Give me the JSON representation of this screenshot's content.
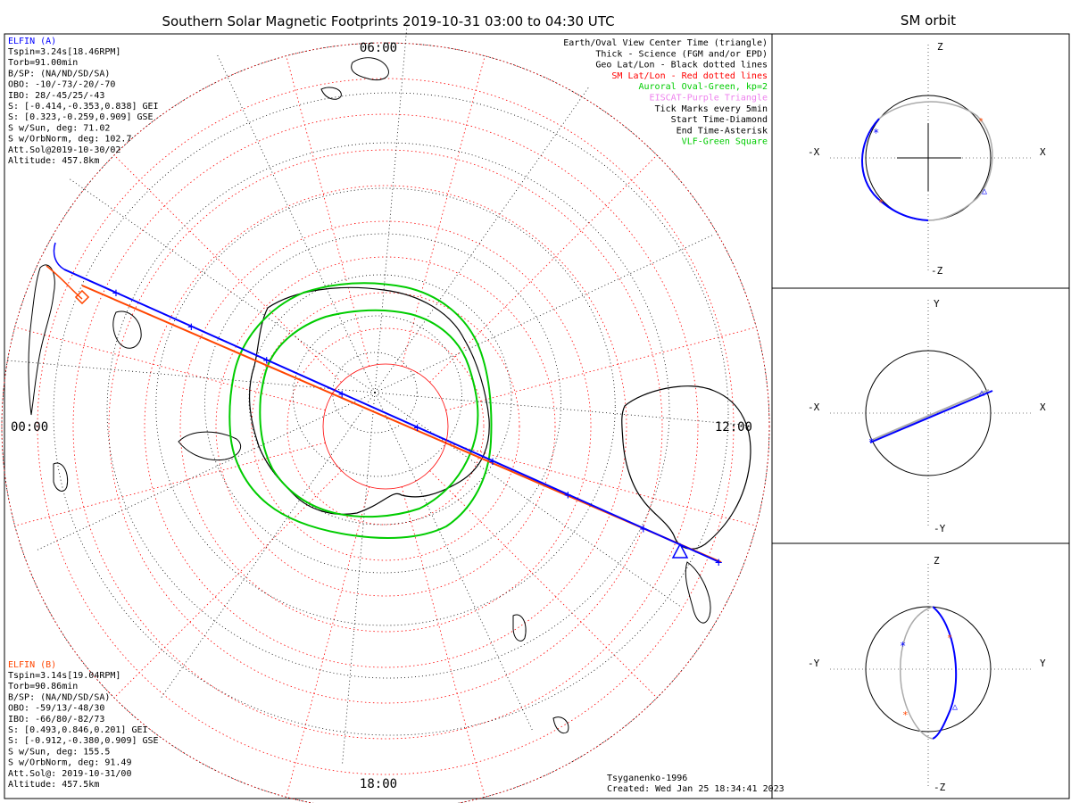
{
  "title": "Southern Solar Magnetic Footprints 2019-10-31 03:00 to 04:30 UTC",
  "sm_orbit_title": "SM orbit",
  "mlt_labels": {
    "top": "06:00",
    "left": "00:00",
    "right": "12:00",
    "bottom": "18:00"
  },
  "elfin_a": {
    "name": "ELFIN (A)",
    "color": "#0000ff",
    "lines": [
      "Tspin=3.24s[18.46RPM]",
      "Torb=91.00min",
      "B/SP: (NA/ND/SD/SA)",
      "OBO: -10/-73/-20/-70",
      "IBO: 28/-45/25/-43",
      "S: [-0.414,-0.353,0.838] GEI",
      "S: [0.323,-0.259,0.909] GSE",
      "S w/Sun, deg: 71.02",
      "S w/OrbNorm, deg: 102.7",
      "Att.Sol@2019-10-30/02",
      "Altitude: 457.8km"
    ]
  },
  "elfin_b": {
    "name": "ELFIN (B)",
    "color": "#ff4500",
    "lines": [
      "Tspin=3.14s[19.04RPM]",
      "Torb=90.86min",
      "B/SP: (NA/ND/SD/SA)",
      "OBO: -59/13/-48/30",
      "IBO: -66/80/-82/73",
      "S: [0.493,0.846,0.201] GEI",
      "S: [-0.912,-0.380,0.909] GSE",
      "S w/Sun, deg: 155.5",
      "S w/OrbNorm, deg: 91.49",
      "Att.Sol@: 2019-10-31/00",
      "Altitude: 457.5km"
    ]
  },
  "legend": [
    {
      "text": "Earth/Oval View Center Time (triangle)",
      "color": "#000000"
    },
    {
      "text": "Thick - Science (FGM and/or EPD)",
      "color": "#000000"
    },
    {
      "text": "Geo Lat/Lon - Black dotted lines",
      "color": "#000000"
    },
    {
      "text": "SM Lat/Lon - Red dotted lines",
      "color": "#ff0000"
    },
    {
      "text": "Auroral Oval-Green, kp=2",
      "color": "#00cc00"
    },
    {
      "text": "EISCAT-Purple Triangle",
      "color": "#ee82ee"
    },
    {
      "text": "Tick Marks every 5min",
      "color": "#000000"
    },
    {
      "text": "Start Time-Diamond",
      "color": "#000000"
    },
    {
      "text": "End Time-Asterisk",
      "color": "#000000"
    },
    {
      "text": "VLF-Green Square",
      "color": "#00cc00"
    }
  ],
  "credits": {
    "model": "Tsyganenko-1996",
    "created": "Created: Wed Jan 25 18:34:41 2023"
  },
  "panels": [
    {
      "top_label": "Z",
      "bottom_label": "-Z",
      "left_label": "-X",
      "right_label": "X"
    },
    {
      "top_label": "Y",
      "bottom_label": "-Y",
      "left_label": "-X",
      "right_label": "X"
    },
    {
      "top_label": "Z",
      "bottom_label": "-Z",
      "left_label": "-Y",
      "right_label": "Y"
    }
  ],
  "colors": {
    "track_a": "#0000ff",
    "track_b": "#ff4500",
    "sm_grid": "#ff0000",
    "geo_grid": "#000000",
    "oval": "#00cc00",
    "orbit_gray": "#aaaaaa"
  }
}
